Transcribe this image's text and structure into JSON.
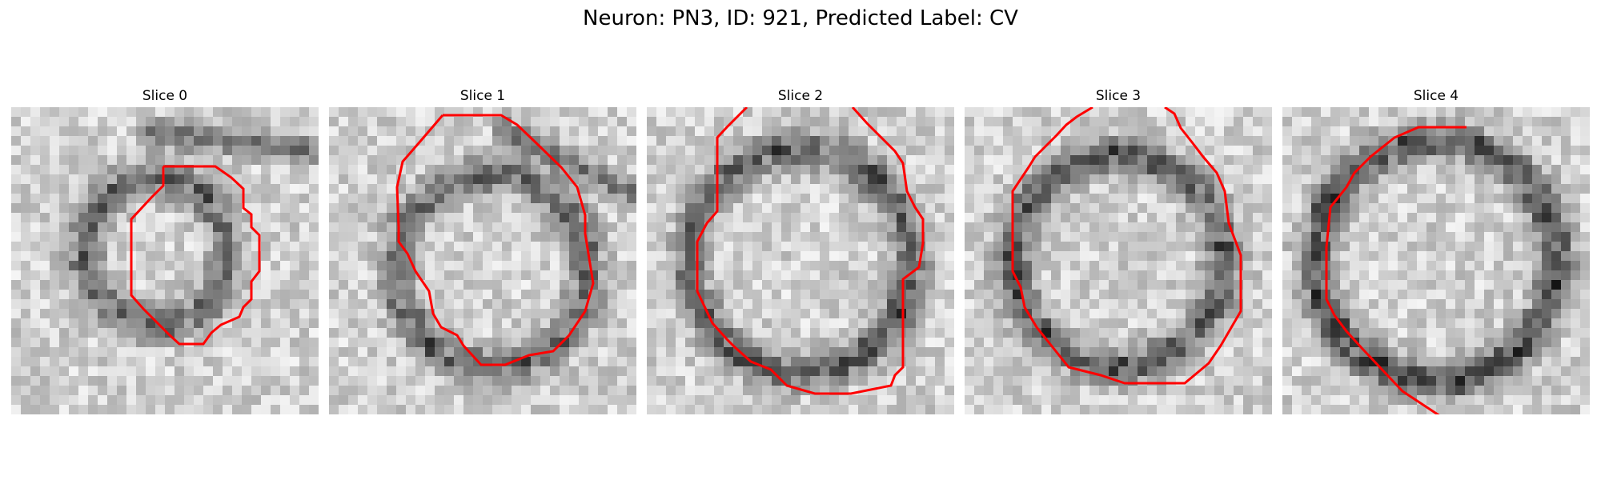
{
  "figure": {
    "title": "Neuron: PN3, ID: 921, Predicted Label: CV",
    "panels": [
      {
        "title": "Slice 0"
      },
      {
        "title": "Slice 1"
      },
      {
        "title": "Slice 2"
      },
      {
        "title": "Slice 3"
      },
      {
        "title": "Slice 4"
      }
    ],
    "colors": {
      "contour": "#ff0000",
      "background": "#ffffff"
    }
  }
}
